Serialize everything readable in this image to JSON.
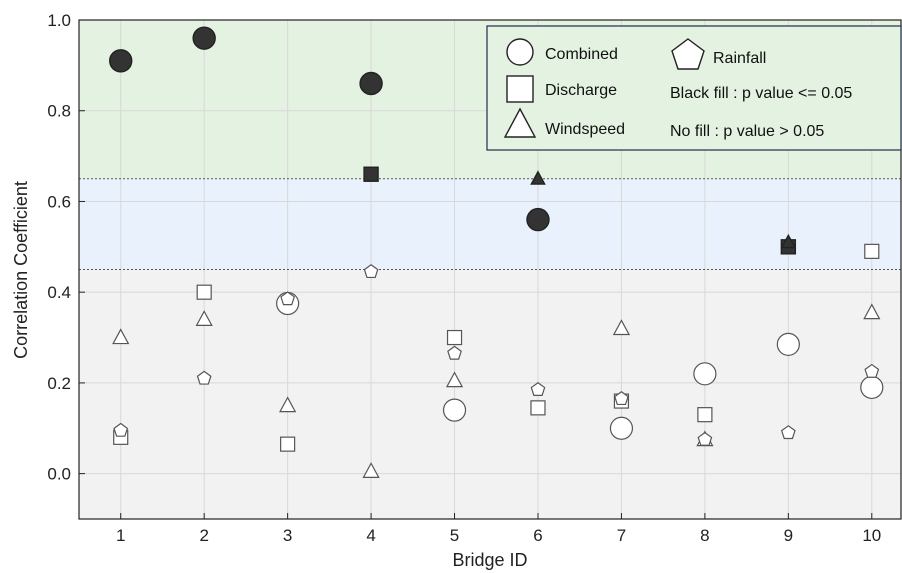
{
  "chart_data": {
    "type": "scatter",
    "title": "",
    "xlabel": "Bridge ID",
    "ylabel": "Correlation Coefficient",
    "xlim": [
      0.5,
      10.35
    ],
    "ylim": [
      -0.1,
      1.0
    ],
    "x_ticks": [
      1,
      2,
      3,
      4,
      5,
      6,
      7,
      8,
      9,
      10
    ],
    "y_ticks": [
      0.0,
      0.2,
      0.4,
      0.6,
      0.8,
      1.0
    ],
    "y_tick_labels": [
      "0.0",
      "0.2",
      "0.4",
      "0.6",
      "0.8",
      "1.0"
    ],
    "grid": true,
    "legend_position": "top-right",
    "bands": [
      {
        "from": 0.65,
        "to": 1.0,
        "color": "#e4f2e1"
      },
      {
        "from": 0.45,
        "to": 0.65,
        "color": "#e8f1fc"
      },
      {
        "from": -0.1,
        "to": 0.45,
        "color": "#f2f2f2"
      }
    ],
    "threshold_lines": [
      0.45,
      0.65
    ],
    "series": [
      {
        "name": "Combined",
        "marker": "circle",
        "points": [
          {
            "x": 1,
            "y": 0.91,
            "filled": true
          },
          {
            "x": 2,
            "y": 0.96,
            "filled": true
          },
          {
            "x": 3,
            "y": 0.375,
            "filled": false
          },
          {
            "x": 4,
            "y": 0.86,
            "filled": true
          },
          {
            "x": 5,
            "y": 0.14,
            "filled": false
          },
          {
            "x": 6,
            "y": 0.56,
            "filled": true
          },
          {
            "x": 7,
            "y": 0.1,
            "filled": false
          },
          {
            "x": 8,
            "y": 0.22,
            "filled": false
          },
          {
            "x": 9,
            "y": 0.285,
            "filled": false
          },
          {
            "x": 10,
            "y": 0.19,
            "filled": false
          }
        ]
      },
      {
        "name": "Discharge",
        "marker": "square",
        "points": [
          {
            "x": 1,
            "y": 0.08,
            "filled": false
          },
          {
            "x": 2,
            "y": 0.4,
            "filled": false
          },
          {
            "x": 3,
            "y": 0.065,
            "filled": false
          },
          {
            "x": 4,
            "y": 0.66,
            "filled": true
          },
          {
            "x": 5,
            "y": 0.3,
            "filled": false
          },
          {
            "x": 6,
            "y": 0.145,
            "filled": false
          },
          {
            "x": 7,
            "y": 0.16,
            "filled": false
          },
          {
            "x": 8,
            "y": 0.13,
            "filled": false
          },
          {
            "x": 9,
            "y": 0.5,
            "filled": true
          },
          {
            "x": 10,
            "y": 0.49,
            "filled": false
          }
        ]
      },
      {
        "name": "Windspeed",
        "marker": "triangle",
        "points": [
          {
            "x": 1,
            "y": 0.3,
            "filled": false
          },
          {
            "x": 2,
            "y": 0.34,
            "filled": false
          },
          {
            "x": 3,
            "y": 0.15,
            "filled": false
          },
          {
            "x": 4,
            "y": 0.005,
            "filled": false
          },
          {
            "x": 5,
            "y": 0.205,
            "filled": false
          },
          {
            "x": 6,
            "y": 0.65,
            "filled": true
          },
          {
            "x": 7,
            "y": 0.32,
            "filled": false
          },
          {
            "x": 8,
            "y": 0.075,
            "filled": false
          },
          {
            "x": 9,
            "y": 0.51,
            "filled": true
          },
          {
            "x": 10,
            "y": 0.355,
            "filled": false
          }
        ]
      },
      {
        "name": "Rainfall",
        "marker": "pentagon",
        "points": [
          {
            "x": 1,
            "y": 0.095,
            "filled": false
          },
          {
            "x": 2,
            "y": 0.21,
            "filled": false
          },
          {
            "x": 3,
            "y": 0.385,
            "filled": false
          },
          {
            "x": 4,
            "y": 0.445,
            "filled": false
          },
          {
            "x": 5,
            "y": 0.265,
            "filled": false
          },
          {
            "x": 6,
            "y": 0.185,
            "filled": false
          },
          {
            "x": 7,
            "y": 0.165,
            "filled": false
          },
          {
            "x": 8,
            "y": 0.075,
            "filled": false
          },
          {
            "x": 9,
            "y": 0.09,
            "filled": false
          },
          {
            "x": 10,
            "y": 0.225,
            "filled": false
          }
        ]
      }
    ],
    "legend": {
      "entries": [
        "Combined",
        "Discharge",
        "Windspeed",
        "Rainfall"
      ],
      "notes": [
        "Black fill : p value <= 0.05",
        "No fill :  p value > 0.05"
      ]
    },
    "filled_color": "#333333",
    "open_fill_color": "#ffffff",
    "marker_edge_color": "#555555"
  }
}
